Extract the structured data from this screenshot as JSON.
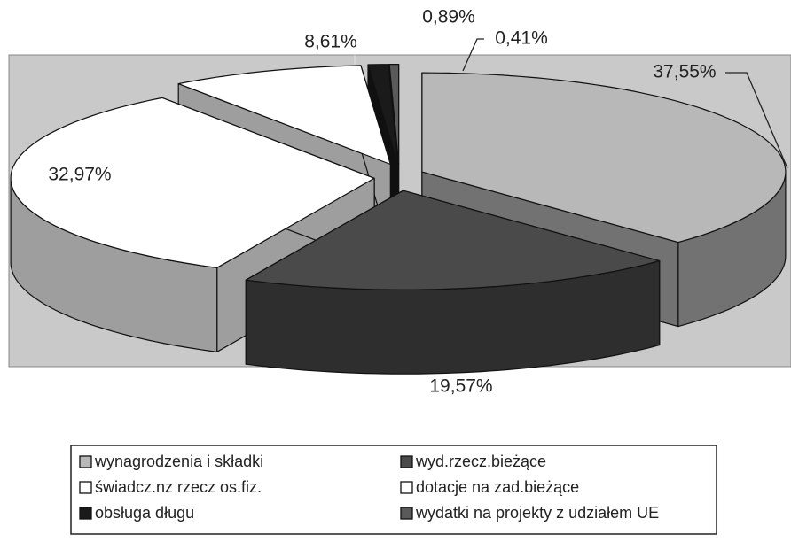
{
  "chart_data": {
    "type": "pie",
    "categories": [
      "wynagrodzenia i składki",
      "wyd.rzecz.bieżące",
      "świadcz.nz rzecz os.fiz.",
      "dotacje na zad.bieżące",
      "obsługa długu",
      "wydatki na projekty z udziałem UE"
    ],
    "values": [
      37.55,
      19.57,
      32.97,
      8.61,
      0.89,
      0.41
    ],
    "value_labels": [
      "37,55%",
      "19,57%",
      "32,97%",
      "8,61%",
      "0,89%",
      "0,41%"
    ],
    "colors": [
      "#b8b8b8",
      "#4a4a4a",
      "#ffffff",
      "#ffffff",
      "#1a1a1a",
      "#5a5a5a"
    ],
    "legend": "bottom"
  }
}
